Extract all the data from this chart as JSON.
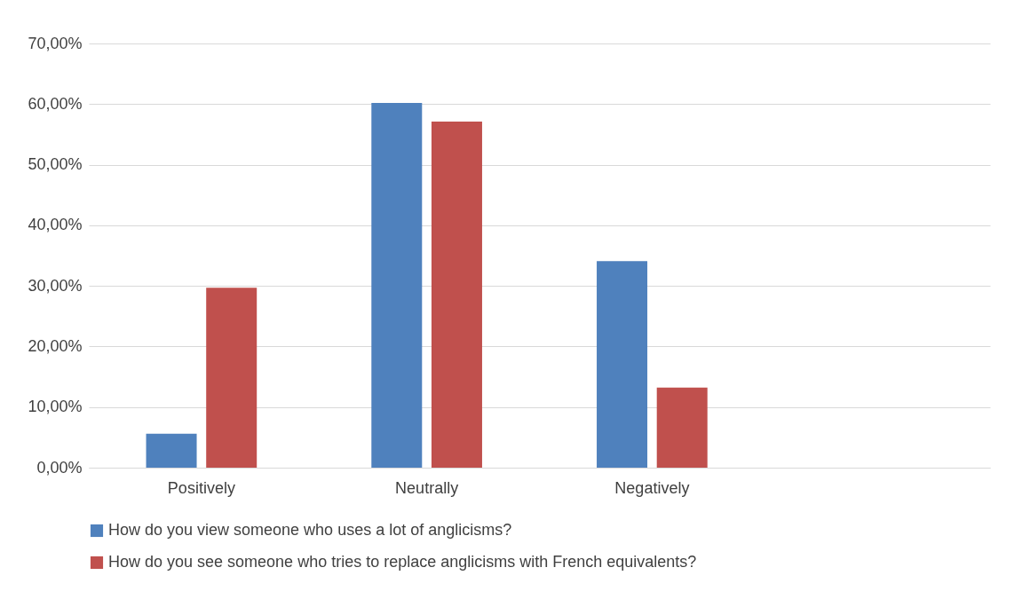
{
  "chart_data": {
    "type": "bar",
    "categories": [
      "Positively",
      "Neutrally",
      "Negatively",
      null
    ],
    "series": [
      {
        "name": "How do you view someone who uses a lot of anglicisms?",
        "color": "#4f81bd",
        "values": [
          5.6,
          60.2,
          34.1,
          null
        ]
      },
      {
        "name": "How do you see someone who tries to replace anglicisms with French equivalents?",
        "color": "#c0504d",
        "values": [
          29.7,
          57.1,
          13.2,
          null
        ]
      }
    ],
    "ylim": [
      0,
      70
    ],
    "yticks": [
      {
        "value": 0,
        "label": "0,00%"
      },
      {
        "value": 10,
        "label": "10,00%"
      },
      {
        "value": 20,
        "label": "20,00%"
      },
      {
        "value": 30,
        "label": "30,00%"
      },
      {
        "value": 40,
        "label": "40,00%"
      },
      {
        "value": 50,
        "label": "50,00%"
      },
      {
        "value": 60,
        "label": "60,00%"
      },
      {
        "value": 70,
        "label": "70,00%"
      }
    ],
    "grid": "y",
    "legend": "bottom"
  }
}
